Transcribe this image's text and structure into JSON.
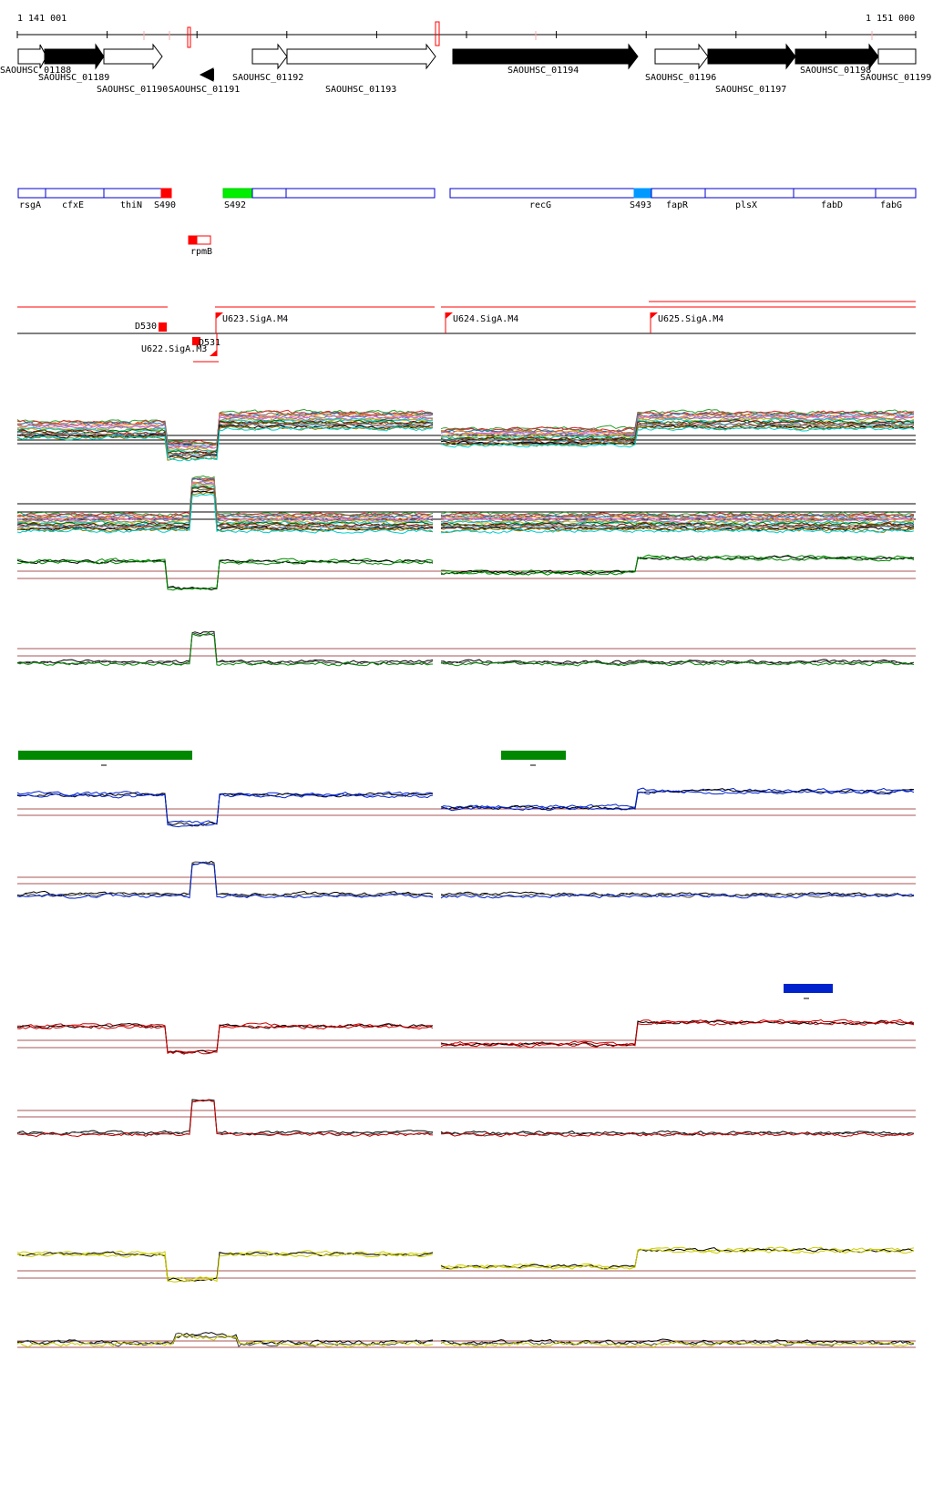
{
  "coords": {
    "start": "1 141 001",
    "end": "1 151 000"
  },
  "genes": [
    {
      "label": "SAOUHSC_01188",
      "filled": false
    },
    {
      "label": "SAOUHSC_01189",
      "filled": true
    },
    {
      "label": "SAOUHSC_01190",
      "filled": false
    },
    {
      "label": "SAOUHSC_01191",
      "filled": true
    },
    {
      "label": "SAOUHSC_01192",
      "filled": false
    },
    {
      "label": "SAOUHSC_01193",
      "filled": false
    },
    {
      "label": "SAOUHSC_01194",
      "filled": true
    },
    {
      "label": "SAOUHSC_01196",
      "filled": false
    },
    {
      "label": "SAOUHSC_01197",
      "filled": true
    },
    {
      "label": "SAOUHSC_01198",
      "filled": true
    },
    {
      "label": "SAOUHSC_01199",
      "filled": false
    }
  ],
  "annotation_track": [
    {
      "label": "rsgA"
    },
    {
      "label": "cfxE"
    },
    {
      "label": "thiN"
    },
    {
      "label": "S490"
    },
    {
      "label": "S492"
    },
    {
      "label": "recG"
    },
    {
      "label": "S493"
    },
    {
      "label": "fapR"
    },
    {
      "label": "plsX"
    },
    {
      "label": "fabD"
    },
    {
      "label": "fabG"
    },
    {
      "label": "rpmB"
    }
  ],
  "regulatory_features": [
    {
      "label": "D530"
    },
    {
      "label": "D531"
    },
    {
      "label": "U622.SigA.M3"
    },
    {
      "label": "U623.SigA.M4"
    },
    {
      "label": "U624.SigA.M4"
    },
    {
      "label": "U625.SigA.M4"
    }
  ],
  "colors": {
    "feature_red": "#ff0000",
    "annot_blue": "#0000cc",
    "s492_green": "#00ee00",
    "s493_blue": "#0099ff",
    "green_track": "#008800",
    "blue_track": "#0022cc",
    "red_track": "#cc0000",
    "yellow_track": "#cccc00",
    "threshold_line": "#aa5555"
  }
}
